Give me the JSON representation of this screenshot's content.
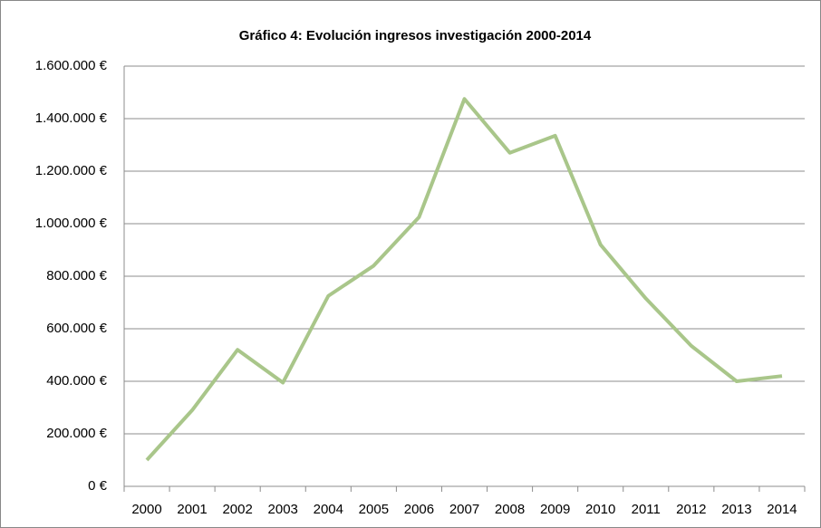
{
  "chart_data": {
    "type": "line",
    "title": "Gráfico 4: Evolución ingresos investigación 2000-2014",
    "categories": [
      "2000",
      "2001",
      "2002",
      "2003",
      "2004",
      "2005",
      "2006",
      "2007",
      "2008",
      "2009",
      "2010",
      "2011",
      "2012",
      "2013",
      "2014"
    ],
    "values": [
      100000,
      290000,
      520000,
      395000,
      725000,
      840000,
      1025000,
      1475000,
      1270000,
      1335000,
      920000,
      715000,
      535000,
      400000,
      420000
    ],
    "color": "#a9c68a",
    "ylim": [
      0,
      1600000
    ],
    "yticks": [
      {
        "value": 0,
        "label": "0 €"
      },
      {
        "value": 200000,
        "label": "200.000 €"
      },
      {
        "value": 400000,
        "label": "400.000 €"
      },
      {
        "value": 600000,
        "label": "600.000 €"
      },
      {
        "value": 800000,
        "label": "800.000 €"
      },
      {
        "value": 1000000,
        "label": "1.000.000 €"
      },
      {
        "value": 1200000,
        "label": "1.200.000 €"
      },
      {
        "value": 1400000,
        "label": "1.400.000 €"
      },
      {
        "value": 1600000,
        "label": "1.600.000 €"
      }
    ],
    "grid": true
  }
}
